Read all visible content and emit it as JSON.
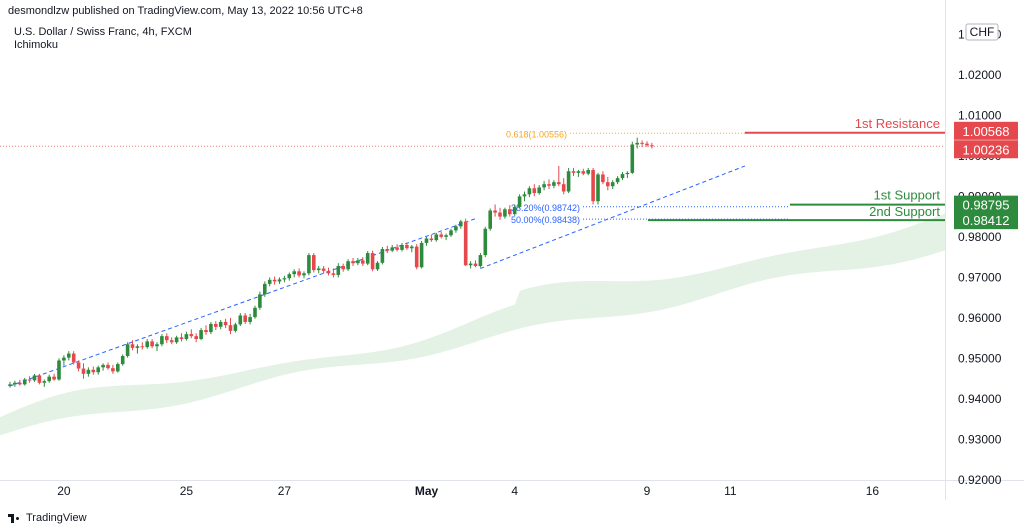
{
  "header": {
    "published": "desmondlzw published on TradingView.com, May 13, 2022 10:56 UTC+8",
    "symbol": "U.S. Dollar / Swiss Franc, 4h, FXCM",
    "indicator": "Ichimoku"
  },
  "footer": {
    "brand": "TradingView"
  },
  "colors": {
    "up": "#2e8b3e",
    "down": "#e5484d",
    "resistance": "#e5484d",
    "support": "#2e8b3e",
    "fib": "#2962ff",
    "fib618": "#f5a623",
    "cloud": "#e3f2e4",
    "grid": "#f0f3fa"
  },
  "chart_data": {
    "type": "candlestick",
    "currency_label": "CHF",
    "ylim": [
      0.92,
      1.035
    ],
    "y_ticks": [
      "1.03000",
      "1.02000",
      "1.01000",
      "1.00000",
      "0.99000",
      "0.98000",
      "0.97000",
      "0.96000",
      "0.95000",
      "0.94000",
      "0.93000",
      "0.92000"
    ],
    "x_ticks": [
      {
        "label": "20",
        "bar": 11
      },
      {
        "label": "25",
        "bar": 36
      },
      {
        "label": "27",
        "bar": 56
      },
      {
        "label": "May",
        "bar": 85
      },
      {
        "label": "4",
        "bar": 103
      },
      {
        "label": "9",
        "bar": 130
      },
      {
        "label": "11",
        "bar": 147
      },
      {
        "label": "16",
        "bar": 176
      }
    ],
    "current_price": "1.00236",
    "levels": [
      {
        "name": "1st Resistance",
        "value": 1.00568,
        "label": "1.00568",
        "kind": "resistance"
      },
      {
        "name": "1st Support",
        "value": 0.98795,
        "label": "0.98795",
        "kind": "support"
      },
      {
        "name": "2nd Support",
        "value": 0.98412,
        "label": "0.98412",
        "kind": "support"
      }
    ],
    "fib_levels": [
      {
        "label": "0.618(1.00556)",
        "value": 1.00556,
        "kind": "618"
      },
      {
        "label": "38.20%(0.98742)",
        "value": 0.98742,
        "kind": "fib"
      },
      {
        "label": "50.00%(0.98438)",
        "value": 0.98438,
        "kind": "fib"
      }
    ],
    "candles": [
      [
        0.9432,
        0.9442,
        0.9428,
        0.9436
      ],
      [
        0.9436,
        0.9445,
        0.943,
        0.944
      ],
      [
        0.944,
        0.9447,
        0.9433,
        0.9436
      ],
      [
        0.9436,
        0.9452,
        0.9433,
        0.9448
      ],
      [
        0.9448,
        0.9456,
        0.944,
        0.9446
      ],
      [
        0.9446,
        0.9462,
        0.9442,
        0.9458
      ],
      [
        0.9458,
        0.9462,
        0.9436,
        0.944
      ],
      [
        0.944,
        0.9448,
        0.943,
        0.9444
      ],
      [
        0.9444,
        0.946,
        0.944,
        0.9455
      ],
      [
        0.9455,
        0.9462,
        0.9445,
        0.9448
      ],
      [
        0.9448,
        0.95,
        0.9445,
        0.9495
      ],
      [
        0.9495,
        0.9508,
        0.9482,
        0.9502
      ],
      [
        0.9502,
        0.9518,
        0.9495,
        0.9512
      ],
      [
        0.9512,
        0.9518,
        0.9485,
        0.949
      ],
      [
        0.949,
        0.9495,
        0.9468,
        0.9475
      ],
      [
        0.9475,
        0.9488,
        0.945,
        0.9462
      ],
      [
        0.9462,
        0.9478,
        0.9455,
        0.9472
      ],
      [
        0.9472,
        0.948,
        0.946,
        0.9466
      ],
      [
        0.9466,
        0.9482,
        0.946,
        0.9478
      ],
      [
        0.9478,
        0.9488,
        0.947,
        0.9484
      ],
      [
        0.9484,
        0.949,
        0.9472,
        0.9476
      ],
      [
        0.9476,
        0.9484,
        0.9462,
        0.9468
      ],
      [
        0.9468,
        0.949,
        0.9465,
        0.9486
      ],
      [
        0.9486,
        0.951,
        0.9482,
        0.9506
      ],
      [
        0.9506,
        0.954,
        0.9502,
        0.9535
      ],
      [
        0.9535,
        0.9545,
        0.952,
        0.9526
      ],
      [
        0.9526,
        0.9535,
        0.9512,
        0.953
      ],
      [
        0.953,
        0.954,
        0.9522,
        0.9528
      ],
      [
        0.9528,
        0.9548,
        0.9524,
        0.9542
      ],
      [
        0.9542,
        0.9548,
        0.9525,
        0.953
      ],
      [
        0.953,
        0.954,
        0.9518,
        0.9535
      ],
      [
        0.9535,
        0.956,
        0.953,
        0.9555
      ],
      [
        0.9555,
        0.9562,
        0.9538,
        0.9545
      ],
      [
        0.9545,
        0.9552,
        0.9535,
        0.954
      ],
      [
        0.954,
        0.9556,
        0.9536,
        0.9552
      ],
      [
        0.9552,
        0.9562,
        0.9542,
        0.9548
      ],
      [
        0.9548,
        0.9566,
        0.9544,
        0.956
      ],
      [
        0.956,
        0.9572,
        0.955,
        0.9555
      ],
      [
        0.9555,
        0.9562,
        0.954,
        0.9548
      ],
      [
        0.9548,
        0.9575,
        0.9545,
        0.957
      ],
      [
        0.957,
        0.9582,
        0.9558,
        0.9565
      ],
      [
        0.9565,
        0.959,
        0.956,
        0.9585
      ],
      [
        0.9585,
        0.9592,
        0.957,
        0.9578
      ],
      [
        0.9578,
        0.9595,
        0.9572,
        0.959
      ],
      [
        0.959,
        0.9598,
        0.9575,
        0.9582
      ],
      [
        0.9582,
        0.96,
        0.956,
        0.9568
      ],
      [
        0.9568,
        0.9588,
        0.9564,
        0.9584
      ],
      [
        0.9584,
        0.9612,
        0.958,
        0.9606
      ],
      [
        0.9606,
        0.9612,
        0.9585,
        0.959
      ],
      [
        0.959,
        0.961,
        0.9584,
        0.9602
      ],
      [
        0.9602,
        0.963,
        0.9598,
        0.9625
      ],
      [
        0.9625,
        0.9665,
        0.962,
        0.9658
      ],
      [
        0.9658,
        0.969,
        0.9652,
        0.9684
      ],
      [
        0.9684,
        0.97,
        0.9678,
        0.9694
      ],
      [
        0.9694,
        0.9702,
        0.9682,
        0.969
      ],
      [
        0.969,
        0.97,
        0.9684,
        0.9695
      ],
      [
        0.9695,
        0.9704,
        0.9688,
        0.9698
      ],
      [
        0.9698,
        0.9712,
        0.9692,
        0.9708
      ],
      [
        0.9708,
        0.972,
        0.97,
        0.9715
      ],
      [
        0.9715,
        0.9722,
        0.97,
        0.9705
      ],
      [
        0.9705,
        0.9715,
        0.9698,
        0.971
      ],
      [
        0.971,
        0.976,
        0.9705,
        0.9755
      ],
      [
        0.9755,
        0.976,
        0.9712,
        0.9718
      ],
      [
        0.9718,
        0.9728,
        0.971,
        0.9722
      ],
      [
        0.9722,
        0.9728,
        0.971,
        0.9716
      ],
      [
        0.9716,
        0.9724,
        0.9705,
        0.971
      ],
      [
        0.971,
        0.9722,
        0.97,
        0.9706
      ],
      [
        0.9706,
        0.9735,
        0.97,
        0.9728
      ],
      [
        0.9728,
        0.9734,
        0.9714,
        0.972
      ],
      [
        0.972,
        0.9745,
        0.9716,
        0.974
      ],
      [
        0.974,
        0.9748,
        0.9728,
        0.9735
      ],
      [
        0.9735,
        0.9748,
        0.973,
        0.9742
      ],
      [
        0.9742,
        0.975,
        0.9728,
        0.9734
      ],
      [
        0.9734,
        0.9765,
        0.973,
        0.976
      ],
      [
        0.976,
        0.9766,
        0.9715,
        0.972
      ],
      [
        0.972,
        0.974,
        0.9716,
        0.9736
      ],
      [
        0.9736,
        0.9775,
        0.9732,
        0.977
      ],
      [
        0.977,
        0.9778,
        0.976,
        0.9766
      ],
      [
        0.9766,
        0.978,
        0.9762,
        0.9774
      ],
      [
        0.9774,
        0.9782,
        0.9764,
        0.9768
      ],
      [
        0.9768,
        0.9785,
        0.9764,
        0.978
      ],
      [
        0.978,
        0.9786,
        0.9768,
        0.9772
      ],
      [
        0.9772,
        0.978,
        0.9762,
        0.9776
      ],
      [
        0.9776,
        0.9782,
        0.972,
        0.9725
      ],
      [
        0.9725,
        0.979,
        0.9722,
        0.9785
      ],
      [
        0.9785,
        0.98,
        0.9778,
        0.9796
      ],
      [
        0.9796,
        0.9805,
        0.9788,
        0.9792
      ],
      [
        0.9792,
        0.981,
        0.9788,
        0.9806
      ],
      [
        0.9806,
        0.9812,
        0.9796,
        0.98
      ],
      [
        0.98,
        0.9808,
        0.9792,
        0.9804
      ],
      [
        0.9804,
        0.982,
        0.98,
        0.9816
      ],
      [
        0.9816,
        0.983,
        0.981,
        0.9826
      ],
      [
        0.9826,
        0.9842,
        0.982,
        0.9838
      ],
      [
        0.9838,
        0.9845,
        0.9728,
        0.973
      ],
      [
        0.973,
        0.974,
        0.9722,
        0.9734
      ],
      [
        0.9734,
        0.9742,
        0.9725,
        0.9728
      ],
      [
        0.9728,
        0.976,
        0.9724,
        0.9755
      ],
      [
        0.9755,
        0.9825,
        0.975,
        0.982
      ],
      [
        0.982,
        0.987,
        0.9815,
        0.9865
      ],
      [
        0.9865,
        0.988,
        0.985,
        0.986
      ],
      [
        0.986,
        0.9872,
        0.9842,
        0.985
      ],
      [
        0.985,
        0.9872,
        0.9845,
        0.9868
      ],
      [
        0.9868,
        0.9878,
        0.985,
        0.9856
      ],
      [
        0.9856,
        0.988,
        0.9852,
        0.9874
      ],
      [
        0.9874,
        0.9905,
        0.987,
        0.99
      ],
      [
        0.99,
        0.9912,
        0.9888,
        0.9905
      ],
      [
        0.9905,
        0.9925,
        0.9898,
        0.992
      ],
      [
        0.992,
        0.993,
        0.99,
        0.9908
      ],
      [
        0.9908,
        0.9928,
        0.9904,
        0.9922
      ],
      [
        0.9922,
        0.9938,
        0.9915,
        0.993
      ],
      [
        0.993,
        0.9942,
        0.9918,
        0.9926
      ],
      [
        0.9926,
        0.994,
        0.992,
        0.9935
      ],
      [
        0.9935,
        0.9975,
        0.9925,
        0.993
      ],
      [
        0.993,
        0.9945,
        0.9905,
        0.9912
      ],
      [
        0.9912,
        0.997,
        0.9908,
        0.9962
      ],
      [
        0.9962,
        0.997,
        0.995,
        0.9958
      ],
      [
        0.9958,
        0.9965,
        0.9948,
        0.9962
      ],
      [
        0.9962,
        0.9968,
        0.9952,
        0.9956
      ],
      [
        0.9956,
        0.997,
        0.9952,
        0.9965
      ],
      [
        0.9965,
        0.997,
        0.988,
        0.9888
      ],
      [
        0.9888,
        0.9958,
        0.988,
        0.9954
      ],
      [
        0.9954,
        0.9962,
        0.993,
        0.9935
      ],
      [
        0.9935,
        0.9948,
        0.9915,
        0.9925
      ],
      [
        0.9925,
        0.994,
        0.9918,
        0.9935
      ],
      [
        0.9935,
        0.995,
        0.993,
        0.9945
      ],
      [
        0.9945,
        0.996,
        0.994,
        0.9955
      ],
      [
        0.9955,
        0.9962,
        0.9945,
        0.9958
      ],
      [
        0.9958,
        1.0035,
        0.9955,
        1.0028
      ],
      [
        1.0028,
        1.0045,
        1.0018,
        1.0032
      ],
      [
        1.0032,
        1.0038,
        1.0022,
        1.003
      ],
      [
        1.003,
        1.0036,
        1.0022,
        1.0026
      ],
      [
        1.0026,
        1.0032,
        1.0018,
        1.0024
      ]
    ]
  }
}
